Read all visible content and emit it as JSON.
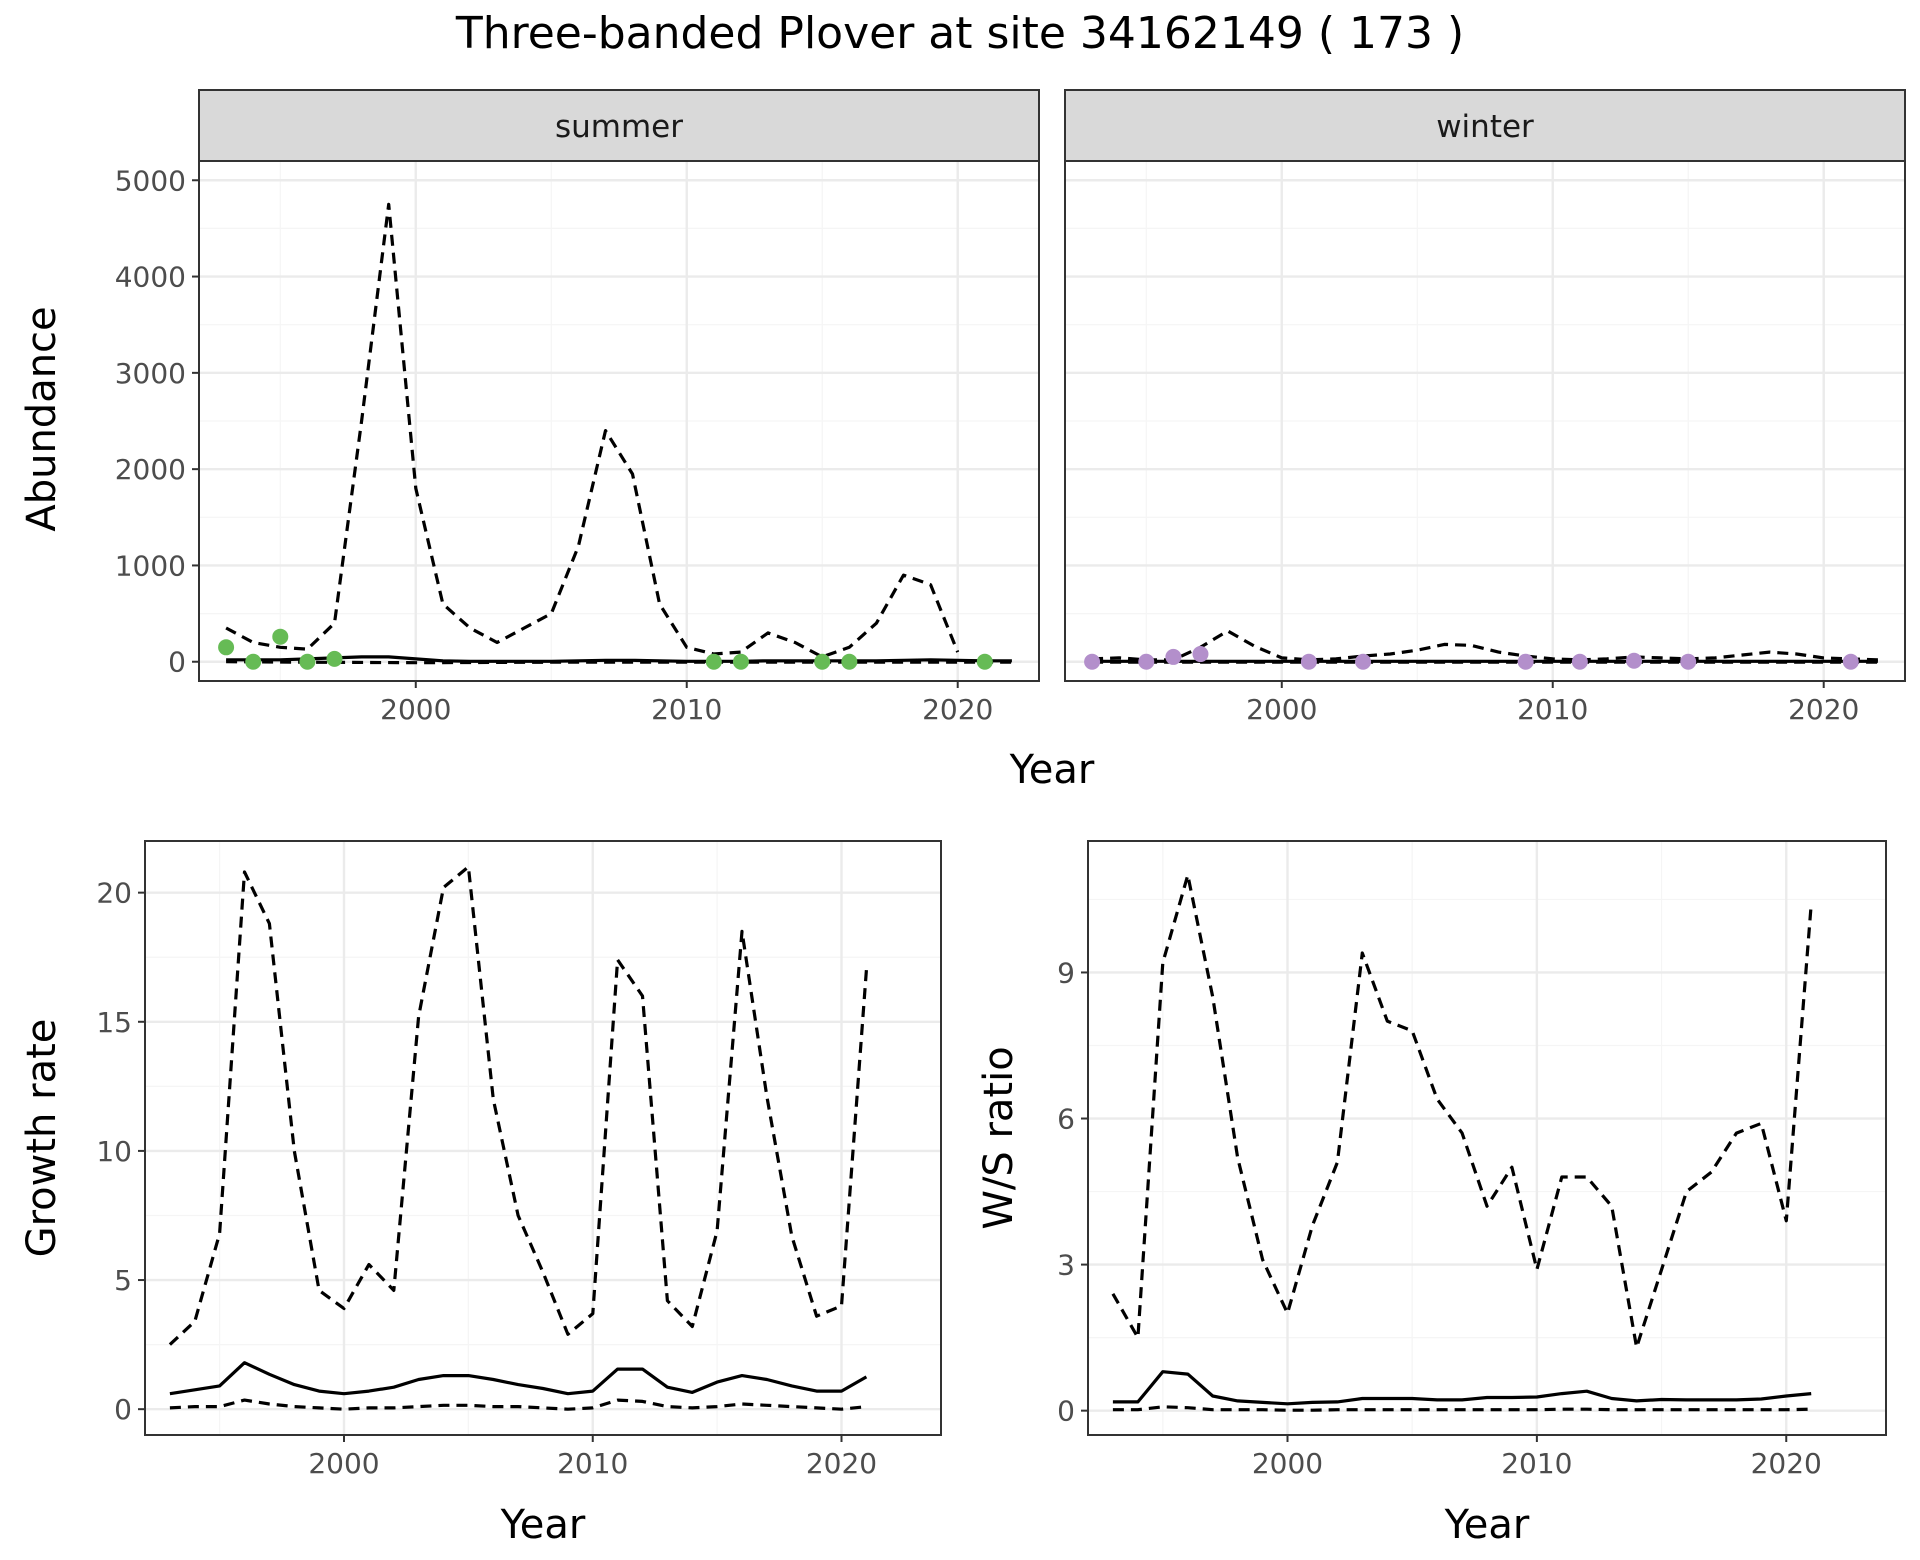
{
  "title": "Three-banded Plover at site 34162149 ( 173 )",
  "colors": {
    "summer_points": "#66bb55",
    "winter_points": "#b38fcb",
    "line": "#000000",
    "grid_major": "#ebebeb",
    "grid_minor": "#f5f5f5",
    "strip_bg": "#d9d9d9",
    "tick_text": "#4d4d4d"
  },
  "chart_data": [
    {
      "type": "line",
      "facet": "summer",
      "strip_label": "summer",
      "xlabel": "Year",
      "ylabel": "Abundance",
      "xlim": [
        1992,
        2023
      ],
      "ylim": [
        -200,
        5200
      ],
      "x_ticks": [
        2000,
        2010,
        2020
      ],
      "y_ticks": [
        0,
        1000,
        2000,
        3000,
        4000,
        5000
      ],
      "grid": true,
      "series": [
        {
          "style": "solid",
          "x": [
            1993,
            1994,
            1995,
            1996,
            1997,
            1998,
            1999,
            2000,
            2001,
            2002,
            2003,
            2004,
            2005,
            2006,
            2007,
            2008,
            2009,
            2010,
            2011,
            2012,
            2013,
            2014,
            2015,
            2016,
            2017,
            2018,
            2019,
            2020,
            2021,
            2022
          ],
          "values": [
            20,
            20,
            20,
            30,
            40,
            50,
            50,
            30,
            10,
            5,
            5,
            5,
            5,
            10,
            15,
            15,
            10,
            5,
            5,
            5,
            10,
            10,
            10,
            10,
            10,
            15,
            20,
            15,
            10,
            10
          ]
        },
        {
          "style": "dashed",
          "x": [
            1993,
            1994,
            1995,
            1996,
            1997,
            1998,
            1999,
            2000,
            2001,
            2002,
            2003,
            2004,
            2005,
            2006,
            2007,
            2008,
            2009,
            2010,
            2011,
            2012,
            2013,
            2014,
            2015,
            2016,
            2017,
            2018,
            2019,
            2020
          ],
          "values": [
            350,
            200,
            150,
            130,
            400,
            2500,
            4750,
            1800,
            600,
            350,
            200,
            350,
            500,
            1200,
            2400,
            1950,
            600,
            150,
            80,
            100,
            300,
            200,
            50,
            150,
            400,
            900,
            800,
            100
          ]
        },
        {
          "style": "dashed",
          "x": [
            1993,
            1996,
            2000,
            2005,
            2010,
            2015,
            2020,
            2022
          ],
          "values": [
            0,
            -5,
            -10,
            -5,
            -5,
            -5,
            -5,
            -5
          ]
        }
      ],
      "points": {
        "x": [
          1993,
          1994,
          1995,
          1996,
          1997,
          2011,
          2012,
          2015,
          2016,
          2021
        ],
        "values": [
          150,
          0,
          260,
          0,
          30,
          0,
          0,
          0,
          0,
          0
        ]
      }
    },
    {
      "type": "line",
      "facet": "winter",
      "strip_label": "winter",
      "xlabel": "Year",
      "ylabel": "Abundance",
      "xlim": [
        1992,
        2023
      ],
      "ylim": [
        -200,
        5200
      ],
      "x_ticks": [
        2000,
        2010,
        2020
      ],
      "y_ticks": [
        0,
        1000,
        2000,
        3000,
        4000,
        5000
      ],
      "grid": true,
      "series": [
        {
          "style": "solid",
          "x": [
            1993,
            1995,
            2000,
            2005,
            2010,
            2015,
            2020,
            2022
          ],
          "values": [
            5,
            5,
            5,
            5,
            5,
            5,
            5,
            5
          ]
        },
        {
          "style": "dashed",
          "x": [
            1993,
            1994,
            1995,
            1996,
            1997,
            1998,
            1999,
            2000,
            2001,
            2002,
            2003,
            2004,
            2005,
            2006,
            2007,
            2008,
            2009,
            2010,
            2011,
            2012,
            2013,
            2014,
            2015,
            2016,
            2017,
            2018,
            2019,
            2020,
            2021,
            2022
          ],
          "values": [
            30,
            40,
            20,
            20,
            150,
            320,
            160,
            40,
            20,
            30,
            60,
            80,
            120,
            180,
            170,
            100,
            60,
            30,
            20,
            30,
            50,
            40,
            30,
            40,
            70,
            100,
            80,
            40,
            30,
            20
          ]
        },
        {
          "style": "dashed",
          "x": [
            1993,
            2000,
            2010,
            2022
          ],
          "values": [
            -5,
            -5,
            -5,
            -5
          ]
        }
      ],
      "points": {
        "x": [
          1993,
          1995,
          1996,
          1997,
          2001,
          2003,
          2009,
          2011,
          2013,
          2015,
          2021
        ],
        "values": [
          0,
          0,
          50,
          80,
          0,
          0,
          0,
          0,
          10,
          0,
          0
        ]
      }
    },
    {
      "type": "line",
      "facet": "growth",
      "xlabel": "Year",
      "ylabel": "Growth rate",
      "xlim": [
        1992,
        2024
      ],
      "ylim": [
        -1,
        22
      ],
      "x_ticks": [
        2000,
        2010,
        2020
      ],
      "y_ticks": [
        0,
        5,
        10,
        15,
        20
      ],
      "grid": true,
      "series": [
        {
          "style": "solid",
          "x": [
            1993,
            1994,
            1995,
            1996,
            1997,
            1998,
            1999,
            2000,
            2001,
            2002,
            2003,
            2004,
            2005,
            2006,
            2007,
            2008,
            2009,
            2010,
            2011,
            2012,
            2013,
            2014,
            2015,
            2016,
            2017,
            2018,
            2019,
            2020,
            2021
          ],
          "values": [
            0.6,
            0.75,
            0.9,
            1.8,
            1.35,
            0.95,
            0.7,
            0.6,
            0.7,
            0.85,
            1.15,
            1.3,
            1.3,
            1.15,
            0.95,
            0.8,
            0.6,
            0.7,
            1.55,
            1.55,
            0.85,
            0.65,
            1.05,
            1.3,
            1.15,
            0.9,
            0.7,
            0.7,
            1.25
          ]
        },
        {
          "style": "dashed",
          "x": [
            1993,
            1994,
            1995,
            1996,
            1997,
            1998,
            1999,
            2000,
            2001,
            2002,
            2003,
            2004,
            2005,
            2006,
            2007,
            2008,
            2009,
            2010,
            2011,
            2012,
            2013,
            2014,
            2015,
            2016,
            2017,
            2018,
            2019,
            2020,
            2021
          ],
          "values": [
            2.5,
            3.4,
            6.8,
            20.8,
            18.8,
            10,
            4.6,
            3.9,
            5.6,
            4.6,
            15.2,
            20.2,
            21,
            12,
            7.5,
            5.3,
            2.9,
            3.7,
            17.4,
            16,
            4.2,
            3.2,
            6.9,
            18.5,
            12.1,
            6.7,
            3.6,
            4,
            17
          ]
        },
        {
          "style": "dashed",
          "x": [
            1993,
            1994,
            1995,
            1996,
            1997,
            1998,
            1999,
            2000,
            2001,
            2002,
            2003,
            2004,
            2005,
            2006,
            2007,
            2008,
            2009,
            2010,
            2011,
            2012,
            2013,
            2014,
            2015,
            2016,
            2017,
            2018,
            2019,
            2020,
            2021
          ],
          "values": [
            0.05,
            0.1,
            0.1,
            0.35,
            0.2,
            0.1,
            0.05,
            0,
            0.05,
            0.05,
            0.1,
            0.15,
            0.15,
            0.1,
            0.1,
            0.05,
            0,
            0.05,
            0.35,
            0.3,
            0.1,
            0.05,
            0.1,
            0.2,
            0.15,
            0.1,
            0.05,
            0,
            0.1
          ]
        }
      ]
    },
    {
      "type": "line",
      "facet": "ratio",
      "xlabel": "Year",
      "ylabel": "W/S ratio",
      "xlim": [
        1992,
        2024
      ],
      "ylim": [
        -0.5,
        11.7
      ],
      "x_ticks": [
        2000,
        2010,
        2020
      ],
      "y_ticks": [
        0,
        3,
        6,
        9
      ],
      "grid": true,
      "series": [
        {
          "style": "solid",
          "x": [
            1993,
            1994,
            1995,
            1996,
            1997,
            1998,
            1999,
            2000,
            2001,
            2002,
            2003,
            2004,
            2005,
            2006,
            2007,
            2008,
            2009,
            2010,
            2011,
            2012,
            2013,
            2014,
            2015,
            2016,
            2017,
            2018,
            2019,
            2020,
            2021
          ],
          "values": [
            0.18,
            0.18,
            0.8,
            0.75,
            0.3,
            0.2,
            0.17,
            0.14,
            0.17,
            0.18,
            0.25,
            0.25,
            0.25,
            0.22,
            0.22,
            0.27,
            0.27,
            0.28,
            0.35,
            0.4,
            0.25,
            0.2,
            0.23,
            0.22,
            0.22,
            0.22,
            0.24,
            0.3,
            0.35
          ]
        },
        {
          "style": "dashed",
          "x": [
            1993,
            1994,
            1995,
            1996,
            1997,
            1998,
            1999,
            2000,
            2001,
            2002,
            2003,
            2004,
            2005,
            2006,
            2007,
            2008,
            2009,
            2010,
            2011,
            2012,
            2013,
            2014,
            2015,
            2016,
            2017,
            2018,
            2019,
            2020,
            2021
          ],
          "values": [
            2.4,
            1.5,
            9.2,
            11,
            8.5,
            5.2,
            3.1,
            2,
            3.8,
            5.1,
            9.4,
            8,
            7.8,
            6.4,
            5.7,
            4.2,
            5,
            2.9,
            4.8,
            4.8,
            4.2,
            1.3,
            2.9,
            4.5,
            4.9,
            5.7,
            5.9,
            3.9,
            10.4
          ]
        },
        {
          "style": "dashed",
          "x": [
            1993,
            1994,
            1995,
            1996,
            1997,
            1998,
            1999,
            2000,
            2001,
            2002,
            2003,
            2004,
            2005,
            2006,
            2007,
            2008,
            2009,
            2010,
            2011,
            2012,
            2013,
            2014,
            2015,
            2016,
            2017,
            2018,
            2019,
            2020,
            2021
          ],
          "values": [
            0.02,
            0.02,
            0.08,
            0.06,
            0.02,
            0.02,
            0.02,
            0.01,
            0.01,
            0.02,
            0.02,
            0.02,
            0.02,
            0.02,
            0.02,
            0.02,
            0.02,
            0.02,
            0.03,
            0.03,
            0.02,
            0.02,
            0.02,
            0.02,
            0.02,
            0.02,
            0.02,
            0.02,
            0.03
          ]
        }
      ]
    }
  ]
}
